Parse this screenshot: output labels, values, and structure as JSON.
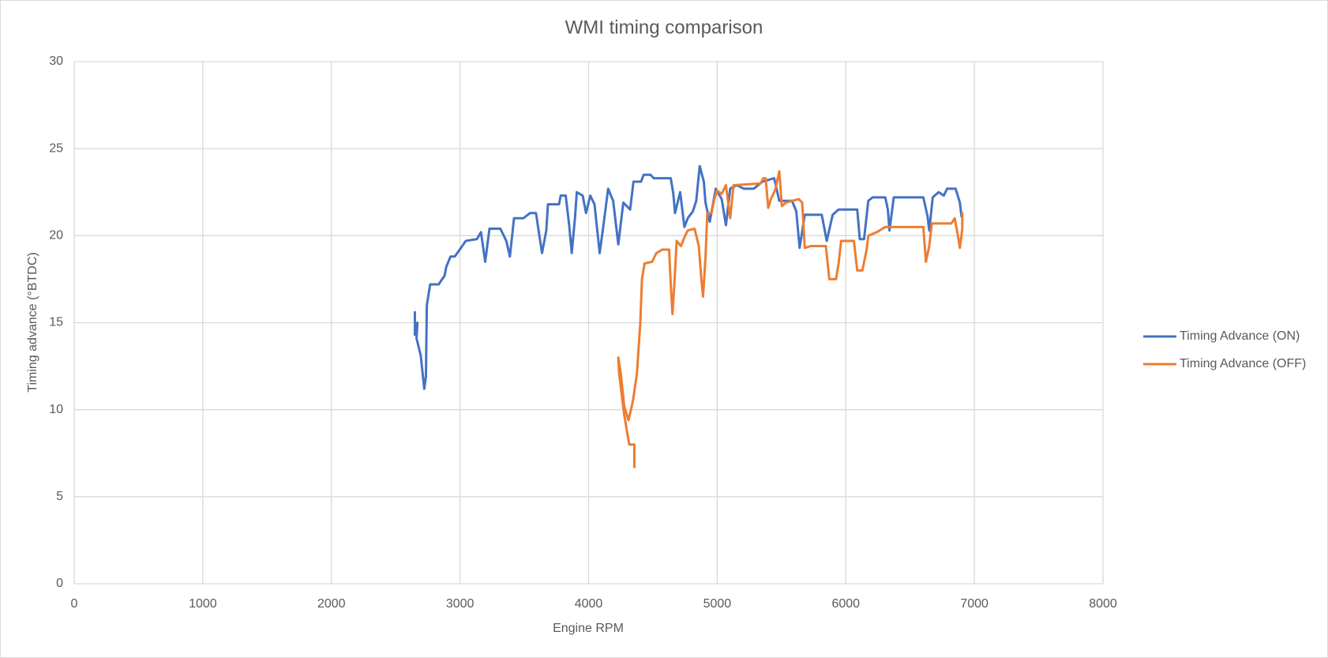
{
  "chart_data": {
    "type": "line",
    "title": "WMI timing comparison",
    "x_label": "Engine RPM",
    "y_label": "Timing advance (°BTDC)",
    "xlim": [
      0,
      8000
    ],
    "xticks": [
      0,
      1000,
      2000,
      3000,
      4000,
      5000,
      6000,
      7000,
      8000
    ],
    "ylim": [
      0,
      30
    ],
    "yticks": [
      0,
      5,
      10,
      15,
      20,
      25,
      30
    ],
    "grid": true,
    "legend": "right",
    "series": [
      {
        "name": "Timing Advance (ON)",
        "color": "#4472c4",
        "x": [
          2649,
          2649,
          2669,
          2662,
          2695,
          2722,
          2735,
          2742,
          2768,
          2834,
          2880,
          2893,
          2926,
          2959,
          2998,
          3045,
          3131,
          3163,
          3196,
          3229,
          3314,
          3360,
          3388,
          3420,
          3493,
          3545,
          3591,
          3611,
          3638,
          3671,
          3684,
          3770,
          3783,
          3822,
          3849,
          3869,
          3895,
          3908,
          3954,
          3980,
          4013,
          4046,
          4066,
          4086,
          4112,
          4152,
          4191,
          4231,
          4270,
          4323,
          4349,
          4408,
          4428,
          4481,
          4507,
          4639,
          4659,
          4672,
          4712,
          4745,
          4771,
          4811,
          4837,
          4864,
          4896,
          4909,
          4942,
          4989,
          5035,
          5068,
          5101,
          5153,
          5206,
          5285,
          5351,
          5443,
          5483,
          5582,
          5615,
          5641,
          5681,
          5813,
          5852,
          5898,
          5944,
          6089,
          6109,
          6142,
          6175,
          6208,
          6307,
          6327,
          6340,
          6373,
          6603,
          6636,
          6649,
          6676,
          6722,
          6762,
          6788,
          6854,
          6887,
          6900
        ],
        "values": [
          15.6,
          14.3,
          15.0,
          14.1,
          13.1,
          11.2,
          11.9,
          16.0,
          17.2,
          17.2,
          17.7,
          18.2,
          18.8,
          18.8,
          19.2,
          19.7,
          19.8,
          20.2,
          18.5,
          20.4,
          20.4,
          19.7,
          18.8,
          21.0,
          21.0,
          21.3,
          21.3,
          20.3,
          19.0,
          20.3,
          21.8,
          21.8,
          22.3,
          22.3,
          20.6,
          19.0,
          21.1,
          22.5,
          22.3,
          21.3,
          22.3,
          21.8,
          20.4,
          19.0,
          20.4,
          22.7,
          22.0,
          19.5,
          21.9,
          21.5,
          23.1,
          23.1,
          23.5,
          23.5,
          23.3,
          23.3,
          22.4,
          21.3,
          22.5,
          20.5,
          21.0,
          21.4,
          22.0,
          24.0,
          23.1,
          21.9,
          20.8,
          22.7,
          22.1,
          20.6,
          22.7,
          22.9,
          22.7,
          22.7,
          23.1,
          23.3,
          22.0,
          22.0,
          21.4,
          19.3,
          21.2,
          21.2,
          19.7,
          21.2,
          21.5,
          21.5,
          19.8,
          19.8,
          22.0,
          22.2,
          22.2,
          21.5,
          20.3,
          22.2,
          22.2,
          21.1,
          20.3,
          22.2,
          22.5,
          22.3,
          22.7,
          22.7,
          21.9,
          21.1
        ]
      },
      {
        "name": "Timing Advance (OFF)",
        "color": "#ed7d31",
        "x": [
          4356,
          4356,
          4316,
          4277,
          4237,
          4231,
          4250,
          4277,
          4310,
          4336,
          4349,
          4376,
          4402,
          4415,
          4435,
          4494,
          4527,
          4573,
          4626,
          4639,
          4652,
          4666,
          4685,
          4718,
          4745,
          4771,
          4824,
          4857,
          4877,
          4890,
          4909,
          4923,
          4956,
          4975,
          4998,
          5035,
          5068,
          5101,
          5127,
          5338,
          5358,
          5377,
          5397,
          5417,
          5450,
          5483,
          5503,
          5535,
          5634,
          5661,
          5681,
          5727,
          5845,
          5872,
          5924,
          5944,
          5964,
          6063,
          6089,
          6129,
          6162,
          6175,
          6241,
          6307,
          6405,
          6603,
          6623,
          6649,
          6669,
          6821,
          6847,
          6867,
          6887,
          6906,
          6906
        ],
        "values": [
          6.7,
          8.0,
          8.0,
          9.7,
          12.1,
          13.0,
          12.1,
          10.2,
          9.4,
          10.2,
          10.7,
          12.1,
          15.0,
          17.5,
          18.4,
          18.5,
          19.0,
          19.2,
          19.2,
          17.2,
          15.5,
          17.1,
          19.7,
          19.4,
          19.9,
          20.3,
          20.4,
          19.4,
          17.5,
          16.5,
          18.7,
          21.3,
          21.3,
          22.0,
          22.6,
          22.4,
          22.9,
          21.0,
          22.9,
          23.0,
          23.3,
          23.3,
          21.6,
          22.1,
          22.6,
          23.7,
          21.7,
          21.9,
          22.1,
          21.9,
          19.3,
          19.4,
          19.4,
          17.5,
          17.5,
          18.4,
          19.7,
          19.7,
          18.0,
          18.0,
          19.2,
          20.0,
          20.2,
          20.5,
          20.5,
          20.5,
          18.5,
          19.4,
          20.7,
          20.7,
          21.0,
          20.2,
          19.3,
          20.4,
          21.3
        ]
      }
    ]
  }
}
